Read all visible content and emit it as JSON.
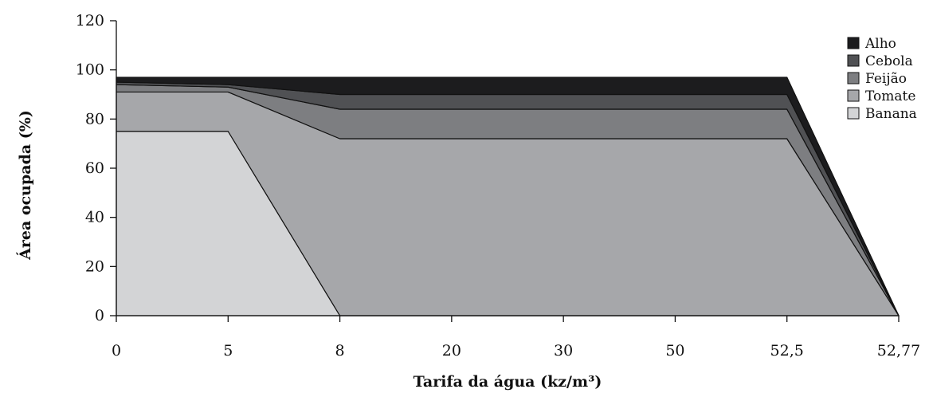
{
  "chart_data": {
    "type": "area",
    "stacked": true,
    "xlabel": "Tarifa da água (kz/m³)",
    "ylabel": "Área ocupada (%)",
    "categories": [
      "0",
      "5",
      "8",
      "20",
      "30",
      "50",
      "52,5",
      "52,77"
    ],
    "ylim": [
      0,
      120
    ],
    "yticks": [
      0,
      20,
      40,
      60,
      80,
      100,
      120
    ],
    "grid": false,
    "legend_position": "right",
    "series": [
      {
        "name": "Banana",
        "color": "#d3d4d6",
        "values": [
          75,
          75,
          0,
          0,
          0,
          0,
          0,
          0
        ]
      },
      {
        "name": "Tomate",
        "color": "#a6a7aa",
        "values": [
          16,
          16,
          72,
          72,
          72,
          72,
          72,
          0
        ]
      },
      {
        "name": "Feijão",
        "color": "#7d7e81",
        "values": [
          3,
          2,
          12,
          12,
          12,
          12,
          12,
          0
        ]
      },
      {
        "name": "Cebola",
        "color": "#505154",
        "values": [
          1,
          1,
          6,
          6,
          6,
          6,
          6,
          0
        ]
      },
      {
        "name": "Alho",
        "color": "#1c1c1e",
        "values": [
          2,
          3,
          7,
          7,
          7,
          7,
          7,
          0
        ]
      }
    ]
  }
}
